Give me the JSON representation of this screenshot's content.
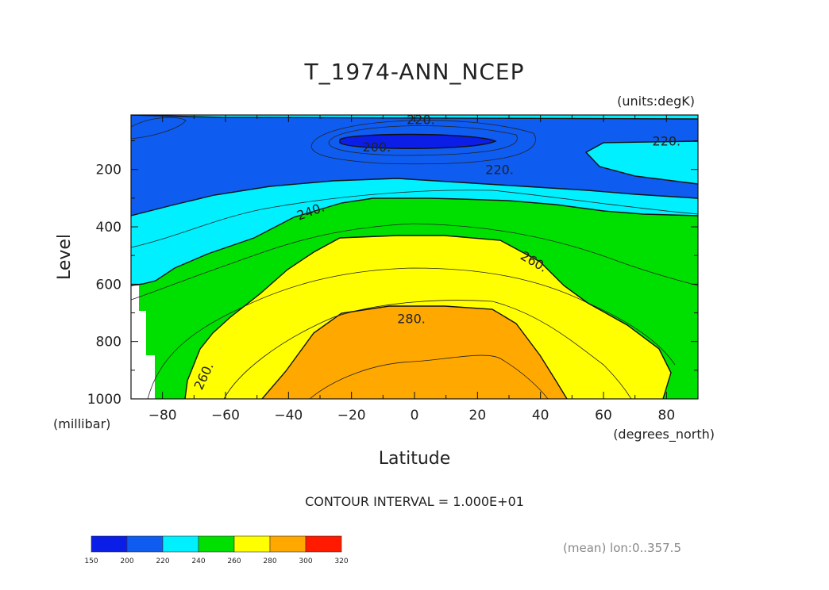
{
  "chart_data": {
    "type": "contour",
    "title": "T_1974-ANN_NCEP",
    "units_label": "(units:degK)",
    "xlabel": "Latitude",
    "ylabel": "Level",
    "x_units_label": "(degrees_north)",
    "y_units_label": "(millibar)",
    "xlim": [
      -90,
      90
    ],
    "ylim": [
      1000,
      10
    ],
    "x_ticks": [
      -80,
      -60,
      -40,
      -20,
      0,
      20,
      40,
      60,
      80
    ],
    "y_ticks": [
      200,
      400,
      600,
      800,
      1000
    ],
    "contour_interval_text": "CONTOUR INTERVAL = 1.000E+01",
    "mean_text": "(mean) lon:0..357.5",
    "contour_labels": [
      {
        "text": "220.",
        "lat": 2,
        "lev": 25
      },
      {
        "text": "200.",
        "lat": -12,
        "lev": 120
      },
      {
        "text": "220.",
        "lat": 80,
        "lev": 100
      },
      {
        "text": "220.",
        "lat": 27,
        "lev": 200
      },
      {
        "text": "240.",
        "lat": -33,
        "lev": 345
      },
      {
        "text": "260.",
        "lat": 38,
        "lev": 520
      },
      {
        "text": "280.",
        "lat": -1,
        "lev": 720
      },
      {
        "text": "260.",
        "lat": -67,
        "lev": 920
      }
    ],
    "colorbar": {
      "levels": [
        150,
        200,
        220,
        240,
        260,
        280,
        300,
        320
      ],
      "tick_labels": [
        "150",
        "200",
        "220",
        "240",
        "260",
        "280",
        "300",
        "320"
      ],
      "colors": [
        "#0a1ee8",
        "#0f5cf0",
        "#00f0ff",
        "#00e000",
        "#ffff00",
        "#ffa800",
        "#ff1a00"
      ]
    },
    "band_colors": {
      "t200": "#0a1ee8",
      "t210_220": "#0f5cf0",
      "t220_240": "#00f0ff",
      "t240_260": "#00e000",
      "t260_280": "#ffff00",
      "t280_300": "#ffa800"
    }
  }
}
